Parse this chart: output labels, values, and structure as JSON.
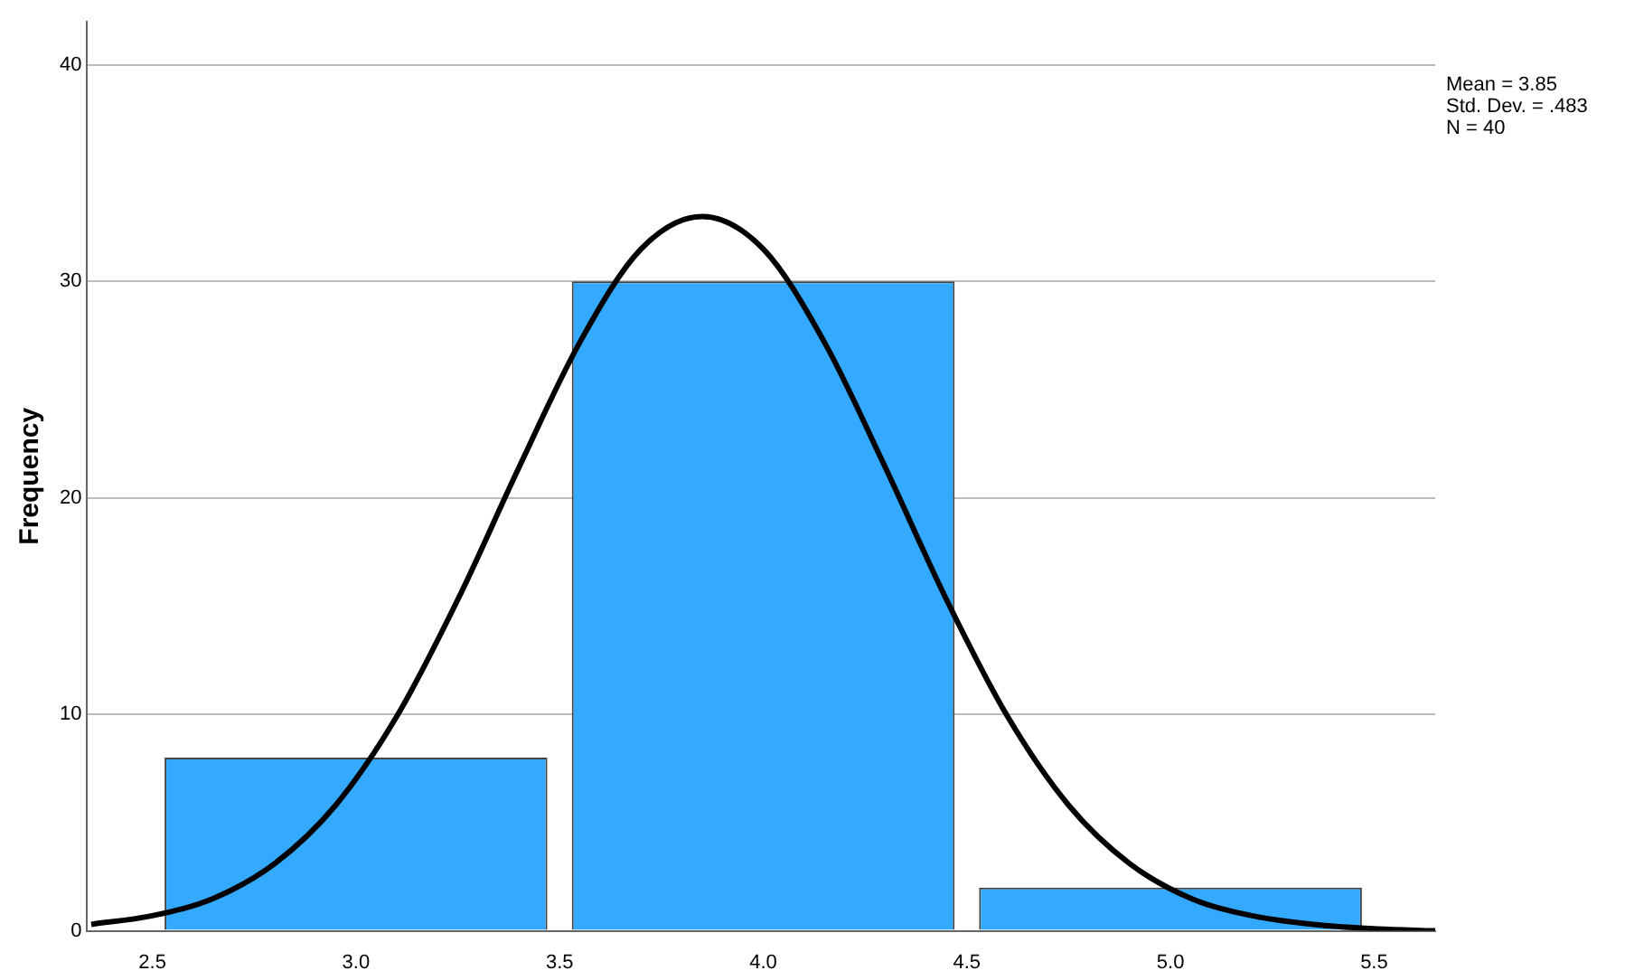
{
  "chart_data": {
    "type": "histogram",
    "ylabel": "Frequency",
    "bins": [
      2.5,
      3.5,
      4.5,
      5.5
    ],
    "values": [
      8,
      30,
      2
    ],
    "color": "#33aaff",
    "series": [
      {
        "type": "line",
        "color": "#000000",
        "x": [
          2.35,
          2.5,
          2.65,
          2.8,
          2.95,
          3.1,
          3.25,
          3.4,
          3.55,
          3.7,
          3.85,
          4.0,
          4.15,
          4.3,
          4.45,
          4.6,
          4.75,
          4.9,
          5.05,
          5.2,
          5.35,
          5.5,
          5.65
        ],
        "values": [
          0.3,
          0.7,
          1.5,
          3.1,
          5.8,
          9.9,
          15.3,
          21.4,
          27.2,
          31.5,
          33.0,
          31.5,
          27.2,
          21.4,
          15.3,
          9.9,
          5.8,
          3.1,
          1.5,
          0.7,
          0.3,
          0.1,
          0.0
        ]
      }
    ],
    "xlim": [
      2.34,
      5.65
    ],
    "xticks": [
      2.5,
      {
        "value": 3,
        "label": "3.0"
      },
      3.5,
      {
        "value": 4,
        "label": "4.0"
      },
      4.5,
      {
        "value": 5,
        "label": "5.0"
      },
      5.5
    ],
    "ylim": [
      0,
      42
    ],
    "yticks": [
      0,
      10,
      20,
      30,
      40
    ],
    "grid": "y",
    "legend": false,
    "annotations": [
      "Mean = 3.85",
      "Std. Dev. = .483",
      "N = 40"
    ]
  }
}
